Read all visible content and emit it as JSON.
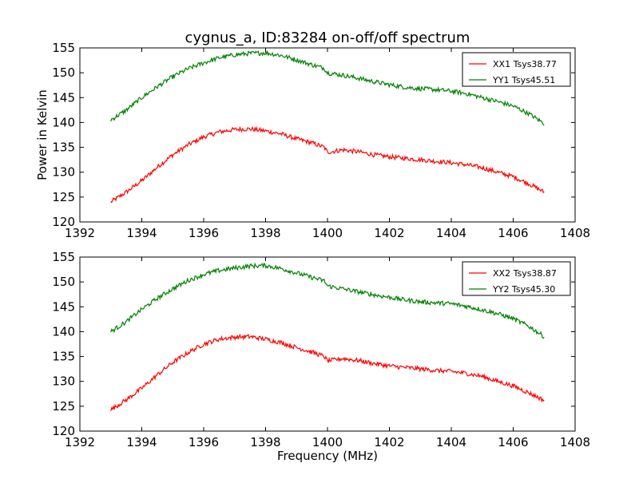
{
  "title": "cygnus_a, ID:83284 on-off/off spectrum",
  "chart_data": [
    {
      "type": "line",
      "title": "cygnus_a, ID:83284 on-off/off spectrum",
      "xlabel": "",
      "ylabel": "Power in Kelvin",
      "xlim": [
        1392,
        1408
      ],
      "ylim": [
        120,
        155
      ],
      "xticks": [
        1392,
        1394,
        1396,
        1398,
        1400,
        1402,
        1404,
        1406,
        1408
      ],
      "yticks": [
        120,
        125,
        130,
        135,
        140,
        145,
        150,
        155
      ],
      "grid": false,
      "legend_position": "top-right",
      "series": [
        {
          "name": "XX1 Tsys38.77",
          "color": "#ff0000",
          "x": [
            1393.0,
            1393.5,
            1394.0,
            1394.5,
            1395.0,
            1395.5,
            1396.0,
            1396.5,
            1397.0,
            1397.5,
            1398.0,
            1398.5,
            1399.0,
            1399.5,
            1399.9,
            1400.0,
            1400.5,
            1401.0,
            1401.5,
            1402.0,
            1402.5,
            1403.0,
            1403.5,
            1404.0,
            1404.5,
            1405.0,
            1405.5,
            1406.0,
            1406.5,
            1407.0
          ],
          "y": [
            124.0,
            126.0,
            128.3,
            131.0,
            133.5,
            135.5,
            137.1,
            138.1,
            138.6,
            138.7,
            138.3,
            137.7,
            136.7,
            135.9,
            135.0,
            134.0,
            134.5,
            134.1,
            133.5,
            133.1,
            132.8,
            132.5,
            132.2,
            131.9,
            131.5,
            130.9,
            130.0,
            129.1,
            127.7,
            126.0
          ]
        },
        {
          "name": "YY1 Tsys45.51",
          "color": "#008000",
          "x": [
            1393.0,
            1393.5,
            1394.0,
            1394.5,
            1395.0,
            1395.5,
            1396.0,
            1396.5,
            1397.0,
            1397.5,
            1398.0,
            1398.5,
            1399.0,
            1399.5,
            1399.9,
            1400.0,
            1400.5,
            1401.0,
            1401.5,
            1402.0,
            1402.5,
            1403.0,
            1403.5,
            1404.0,
            1404.5,
            1405.0,
            1405.5,
            1406.0,
            1406.5,
            1407.0
          ],
          "y": [
            140.5,
            142.5,
            145.0,
            147.2,
            149.2,
            150.8,
            152.0,
            153.0,
            153.6,
            153.9,
            154.0,
            153.5,
            152.6,
            151.6,
            150.9,
            150.0,
            149.5,
            148.9,
            148.2,
            147.6,
            147.1,
            146.8,
            146.6,
            146.3,
            145.8,
            145.0,
            144.2,
            143.3,
            141.8,
            139.8
          ]
        }
      ]
    },
    {
      "type": "line",
      "title": "",
      "xlabel": "Frequency (MHz)",
      "ylabel": "",
      "xlim": [
        1392,
        1408
      ],
      "ylim": [
        120,
        155
      ],
      "xticks": [
        1392,
        1394,
        1396,
        1398,
        1400,
        1402,
        1404,
        1406,
        1408
      ],
      "yticks": [
        120,
        125,
        130,
        135,
        140,
        145,
        150,
        155
      ],
      "grid": false,
      "legend_position": "top-right",
      "series": [
        {
          "name": "XX2 Tsys38.87",
          "color": "#ff0000",
          "x": [
            1393.0,
            1393.5,
            1394.0,
            1394.5,
            1395.0,
            1395.5,
            1396.0,
            1396.5,
            1397.0,
            1397.5,
            1398.0,
            1398.5,
            1399.0,
            1399.5,
            1399.9,
            1400.0,
            1400.5,
            1401.0,
            1401.5,
            1402.0,
            1402.5,
            1403.0,
            1403.5,
            1404.0,
            1404.5,
            1405.0,
            1405.5,
            1406.0,
            1406.5,
            1407.0
          ],
          "y": [
            124.3,
            126.3,
            128.6,
            131.3,
            133.8,
            135.8,
            137.5,
            138.5,
            138.9,
            139.0,
            138.5,
            137.8,
            136.8,
            135.9,
            135.0,
            134.1,
            134.6,
            134.2,
            133.6,
            133.1,
            132.8,
            132.5,
            132.2,
            132.0,
            131.6,
            131.0,
            130.0,
            129.1,
            127.7,
            126.2
          ]
        },
        {
          "name": "YY2 Tsys45.30",
          "color": "#008000",
          "x": [
            1393.0,
            1393.5,
            1394.0,
            1394.5,
            1395.0,
            1395.5,
            1396.0,
            1396.5,
            1397.0,
            1397.5,
            1398.0,
            1398.5,
            1399.0,
            1399.5,
            1399.9,
            1400.0,
            1400.5,
            1401.0,
            1401.5,
            1402.0,
            1402.5,
            1403.0,
            1403.5,
            1404.0,
            1404.5,
            1405.0,
            1405.5,
            1406.0,
            1406.5,
            1407.0
          ],
          "y": [
            140.0,
            142.0,
            144.5,
            146.7,
            148.6,
            150.3,
            151.5,
            152.3,
            152.8,
            153.2,
            153.3,
            152.7,
            151.8,
            150.9,
            150.2,
            149.2,
            148.6,
            148.0,
            147.4,
            146.9,
            146.4,
            146.0,
            145.8,
            145.6,
            145.1,
            144.4,
            143.6,
            142.6,
            141.1,
            139.0
          ]
        }
      ]
    }
  ]
}
